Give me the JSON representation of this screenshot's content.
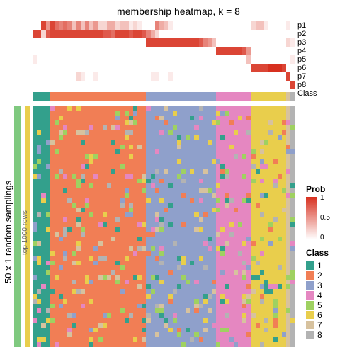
{
  "title": "membership heatmap, k = 8",
  "ylabel_outer": "50 x 1 random samplings",
  "ylabel_inner": "top 1000 rows",
  "row_labels": [
    "p1",
    "p2",
    "p3",
    "p4",
    "p5",
    "p6",
    "p7",
    "p8",
    "Class"
  ],
  "n_columns": 60,
  "n_body_rows": 50,
  "class_colors": {
    "1": "#33a08c",
    "2": "#f17e55",
    "3": "#8fa0cb",
    "4": "#e587c1",
    "5": "#9fd161",
    "6": "#e9ce4c",
    "7": "#d7c29e",
    "8": "#b3b3b3"
  },
  "prob_colormap": {
    "low": "#ffffff",
    "high": "#d7301f"
  },
  "side_bar_outer_color": "#7fc97f",
  "side_bar_inner_color": "#e9ce4c",
  "column_class": [
    1,
    1,
    1,
    1,
    2,
    2,
    2,
    2,
    2,
    2,
    2,
    2,
    2,
    2,
    2,
    2,
    2,
    2,
    2,
    2,
    2,
    2,
    2,
    2,
    2,
    2,
    3,
    3,
    3,
    3,
    3,
    3,
    3,
    3,
    3,
    3,
    3,
    3,
    3,
    3,
    3,
    3,
    4,
    4,
    4,
    4,
    4,
    4,
    4,
    4,
    6,
    6,
    6,
    6,
    6,
    6,
    6,
    6,
    7,
    8
  ],
  "prob_rows": [
    [
      0,
      0,
      0.9,
      0.5,
      0.9,
      0.7,
      0.6,
      0.7,
      0.6,
      0.3,
      0.6,
      0.3,
      0.6,
      0.3,
      0.5,
      0.2,
      0.2,
      0.4,
      0.4,
      0.2,
      0.3,
      0.3,
      0.1,
      0.2,
      0.1,
      0,
      0,
      0,
      0.6,
      0.4,
      0.3,
      0.1,
      0,
      0,
      0,
      0,
      0,
      0,
      0,
      0,
      0,
      0,
      0,
      0,
      0,
      0,
      0,
      0,
      0,
      0,
      0.2,
      0.3,
      0.3,
      0.1,
      0,
      0,
      0,
      0,
      0.1,
      0
    ],
    [
      0.9,
      0.9,
      0.2,
      0.8,
      0.9,
      0.9,
      0.9,
      0.9,
      0.9,
      0.9,
      0.9,
      0.9,
      0.9,
      0.9,
      0.9,
      0.9,
      0.8,
      0.8,
      0.7,
      0.9,
      0.9,
      0.9,
      0.8,
      0.9,
      0.9,
      0.8,
      0.6,
      0.4,
      0.2,
      0,
      0,
      0,
      0,
      0,
      0,
      0,
      0,
      0,
      0,
      0,
      0,
      0,
      0,
      0,
      0,
      0,
      0,
      0,
      0,
      0,
      0,
      0,
      0,
      0,
      0,
      0,
      0,
      0,
      0,
      0
    ],
    [
      0,
      0,
      0,
      0,
      0,
      0,
      0,
      0,
      0,
      0,
      0,
      0,
      0,
      0,
      0,
      0,
      0,
      0,
      0,
      0,
      0,
      0,
      0,
      0,
      0,
      0,
      0.9,
      0.9,
      0.9,
      0.9,
      0.9,
      0.9,
      0.9,
      0.9,
      0.9,
      0.9,
      0.9,
      0.9,
      0.8,
      0.6,
      0.5,
      0.3,
      0,
      0,
      0,
      0,
      0,
      0,
      0,
      0,
      0,
      0,
      0,
      0,
      0,
      0,
      0,
      0,
      0.2,
      0.1
    ],
    [
      0,
      0,
      0,
      0,
      0,
      0,
      0,
      0,
      0,
      0,
      0,
      0,
      0,
      0,
      0,
      0,
      0,
      0,
      0,
      0,
      0,
      0,
      0,
      0,
      0,
      0,
      0,
      0,
      0,
      0,
      0,
      0,
      0,
      0,
      0,
      0,
      0,
      0,
      0,
      0,
      0,
      0,
      0.9,
      0.9,
      0.9,
      0.9,
      0.9,
      0.9,
      0.8,
      0.5,
      0,
      0,
      0,
      0,
      0,
      0,
      0,
      0,
      0,
      0
    ],
    [
      0.1,
      0,
      0,
      0,
      0,
      0,
      0,
      0,
      0,
      0,
      0,
      0,
      0,
      0,
      0,
      0,
      0,
      0,
      0,
      0,
      0,
      0,
      0,
      0,
      0,
      0,
      0,
      0,
      0,
      0,
      0,
      0,
      0,
      0,
      0,
      0,
      0,
      0,
      0,
      0,
      0,
      0,
      0,
      0,
      0,
      0,
      0,
      0,
      0,
      0.3,
      0,
      0,
      0,
      0,
      0,
      0,
      0,
      0,
      0,
      0.1
    ],
    [
      0,
      0,
      0,
      0,
      0,
      0,
      0,
      0,
      0,
      0,
      0,
      0,
      0,
      0,
      0,
      0,
      0,
      0,
      0,
      0,
      0,
      0,
      0,
      0,
      0,
      0,
      0,
      0,
      0,
      0,
      0,
      0,
      0,
      0,
      0,
      0,
      0,
      0,
      0,
      0,
      0,
      0,
      0,
      0,
      0,
      0,
      0,
      0,
      0,
      0,
      0.9,
      0.9,
      0.9,
      0.9,
      1,
      1,
      1,
      0.9,
      0,
      0
    ],
    [
      0,
      0,
      0,
      0,
      0,
      0,
      0,
      0,
      0,
      0,
      0.2,
      0.1,
      0,
      0,
      0.1,
      0,
      0,
      0,
      0,
      0,
      0,
      0,
      0,
      0,
      0,
      0,
      0,
      0.1,
      0.1,
      0,
      0,
      0.1,
      0,
      0,
      0,
      0,
      0,
      0,
      0,
      0,
      0,
      0,
      0,
      0,
      0,
      0,
      0,
      0,
      0,
      0,
      0,
      0,
      0,
      0,
      0,
      0,
      0,
      0,
      0.9,
      0
    ],
    [
      0,
      0,
      0,
      0,
      0,
      0,
      0,
      0,
      0,
      0,
      0,
      0,
      0,
      0,
      0,
      0,
      0,
      0,
      0,
      0,
      0,
      0,
      0,
      0,
      0,
      0,
      0,
      0,
      0,
      0,
      0,
      0,
      0,
      0,
      0,
      0,
      0,
      0,
      0,
      0,
      0,
      0,
      0,
      0,
      0,
      0,
      0,
      0,
      0,
      0,
      0,
      0,
      0,
      0,
      0,
      0,
      0,
      0,
      0,
      0.9
    ]
  ],
  "body_noise_seed": 12345,
  "body_noise_prob": 0.18,
  "prob_legend": {
    "title": "Prob",
    "ticks": [
      "1",
      "0.5",
      "0"
    ]
  },
  "class_legend": {
    "title": "Class",
    "items": [
      "1",
      "2",
      "3",
      "4",
      "5",
      "6",
      "7",
      "8"
    ]
  }
}
